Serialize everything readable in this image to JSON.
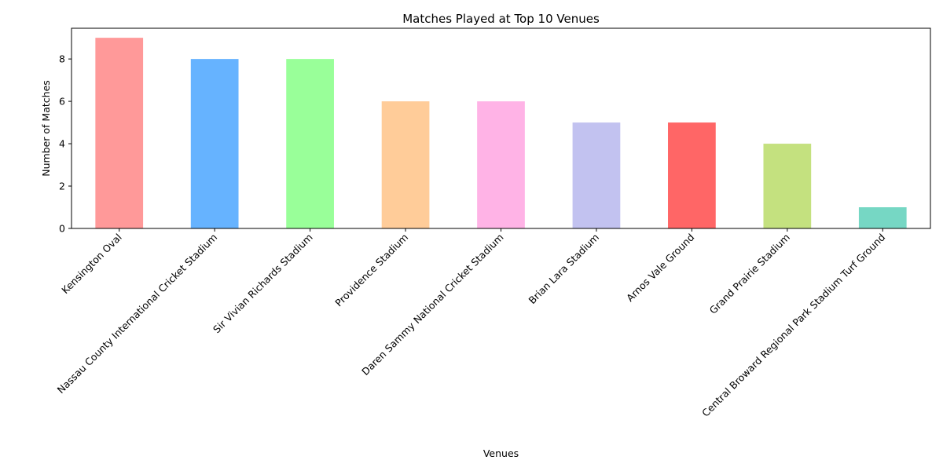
{
  "chart_data": {
    "type": "bar",
    "title": "Matches Played at Top 10 Venues",
    "xlabel": "Venues",
    "ylabel": "Number of Matches",
    "categories": [
      "Kensington Oval",
      "Nassau County International Cricket Stadium",
      "Sir Vivian Richards Stadium",
      "Providence Stadium",
      "Daren Sammy National Cricket Stadium",
      "Brian Lara Stadium",
      "Arnos Vale Ground",
      "Grand Prairie Stadium",
      "Central Broward Regional Park Stadium Turf Ground"
    ],
    "values": [
      9,
      8,
      8,
      6,
      6,
      5,
      5,
      4,
      1
    ],
    "colors": [
      "#ff9999",
      "#66b3ff",
      "#99ff99",
      "#ffcc99",
      "#ffb3e6",
      "#c2c2f0",
      "#ff6666",
      "#c4e17f",
      "#76d7c4"
    ],
    "ylim": [
      0,
      9.45
    ],
    "yticks": [
      0,
      2,
      4,
      6,
      8
    ],
    "grid": false,
    "legend": "none"
  }
}
